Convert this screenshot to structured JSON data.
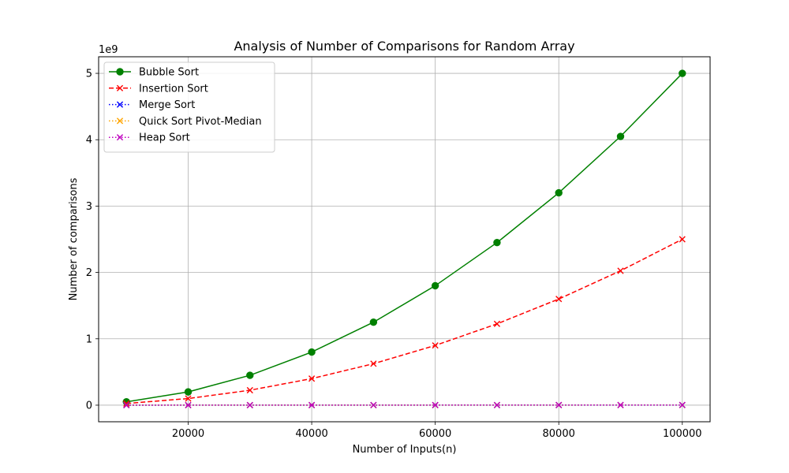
{
  "chart_data": {
    "type": "line",
    "title": "Analysis of Number of Comparisons for Random Array",
    "xlabel": "Number of Inputs(n)",
    "ylabel": "Number of comparisons",
    "y_offset_label": "1e9",
    "xlim": [
      5500,
      104500
    ],
    "ylim": [
      -0.25,
      5.25
    ],
    "x_ticks": [
      20000,
      40000,
      60000,
      80000,
      100000
    ],
    "y_ticks": [
      0,
      1,
      2,
      3,
      4,
      5
    ],
    "grid": true,
    "legend_position": "top-left",
    "x": [
      10000,
      20000,
      30000,
      40000,
      50000,
      60000,
      70000,
      80000,
      90000,
      100000
    ],
    "series": [
      {
        "name": "Bubble Sort",
        "color": "#008000",
        "dash": "solid",
        "marker": "circle",
        "values": [
          0.05,
          0.2,
          0.45,
          0.8,
          1.25,
          1.8,
          2.45,
          3.2,
          4.05,
          5.0
        ]
      },
      {
        "name": "Insertion Sort",
        "color": "#ff0000",
        "dash": "dashed",
        "marker": "x",
        "values": [
          0.025,
          0.1,
          0.225,
          0.4,
          0.625,
          0.9,
          1.225,
          1.6,
          2.025,
          2.5
        ]
      },
      {
        "name": "Merge Sort",
        "color": "#0000ff",
        "dash": "dotted",
        "marker": "x",
        "values": [
          0.0001,
          0.0003,
          0.0004,
          0.0006,
          0.0008,
          0.0009,
          0.0011,
          0.0013,
          0.0014,
          0.0016
        ]
      },
      {
        "name": "Quick Sort Pivot-Median",
        "color": "#ffa500",
        "dash": "dotted",
        "marker": "x",
        "values": [
          0.0002,
          0.0004,
          0.0006,
          0.0008,
          0.001,
          0.0012,
          0.0014,
          0.0016,
          0.0018,
          0.002
        ]
      },
      {
        "name": "Heap Sort",
        "color": "#bf00bf",
        "dash": "dotted",
        "marker": "x",
        "values": [
          0.0002,
          0.0005,
          0.0008,
          0.0011,
          0.0014,
          0.0017,
          0.002,
          0.0023,
          0.0026,
          0.0029
        ]
      }
    ]
  }
}
